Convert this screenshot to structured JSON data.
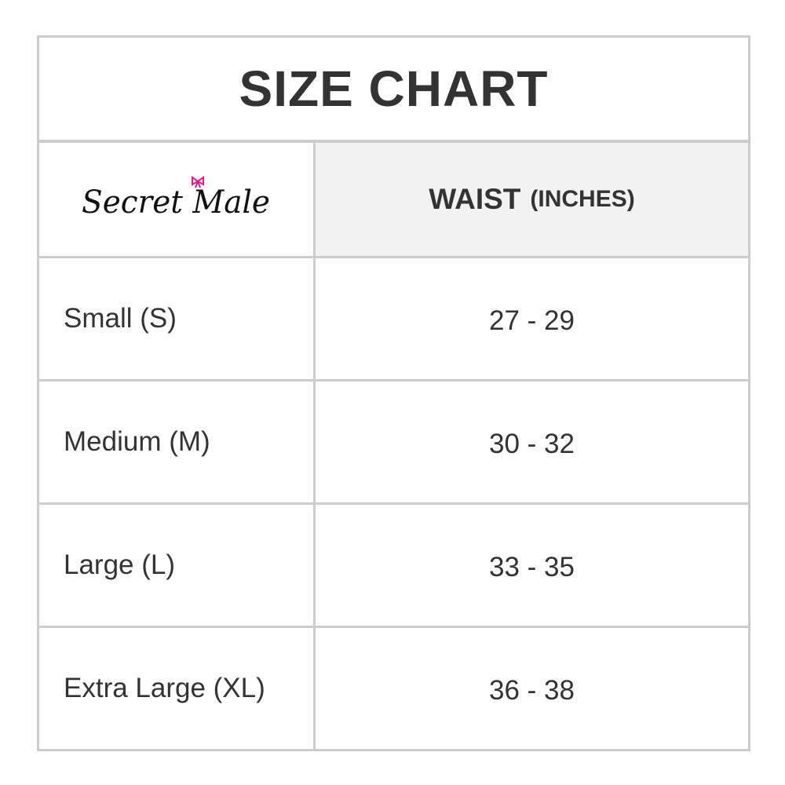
{
  "title": "SIZE CHART",
  "brand": {
    "logo_text": "Secret Male",
    "bow_color": "#e8188c"
  },
  "header": {
    "column": "WAIST",
    "unit": "(INCHES)"
  },
  "rows": [
    {
      "size": "Small (S)",
      "waist": "27 - 29"
    },
    {
      "size": "Medium (M)",
      "waist": "30 - 32"
    },
    {
      "size": "Large (L)",
      "waist": "33 - 35"
    },
    {
      "size": "Extra Large (XL)",
      "waist": "36 - 38"
    }
  ],
  "colors": {
    "border": "#cccccc",
    "header_bg": "#f2f2f2",
    "text": "#333333"
  }
}
